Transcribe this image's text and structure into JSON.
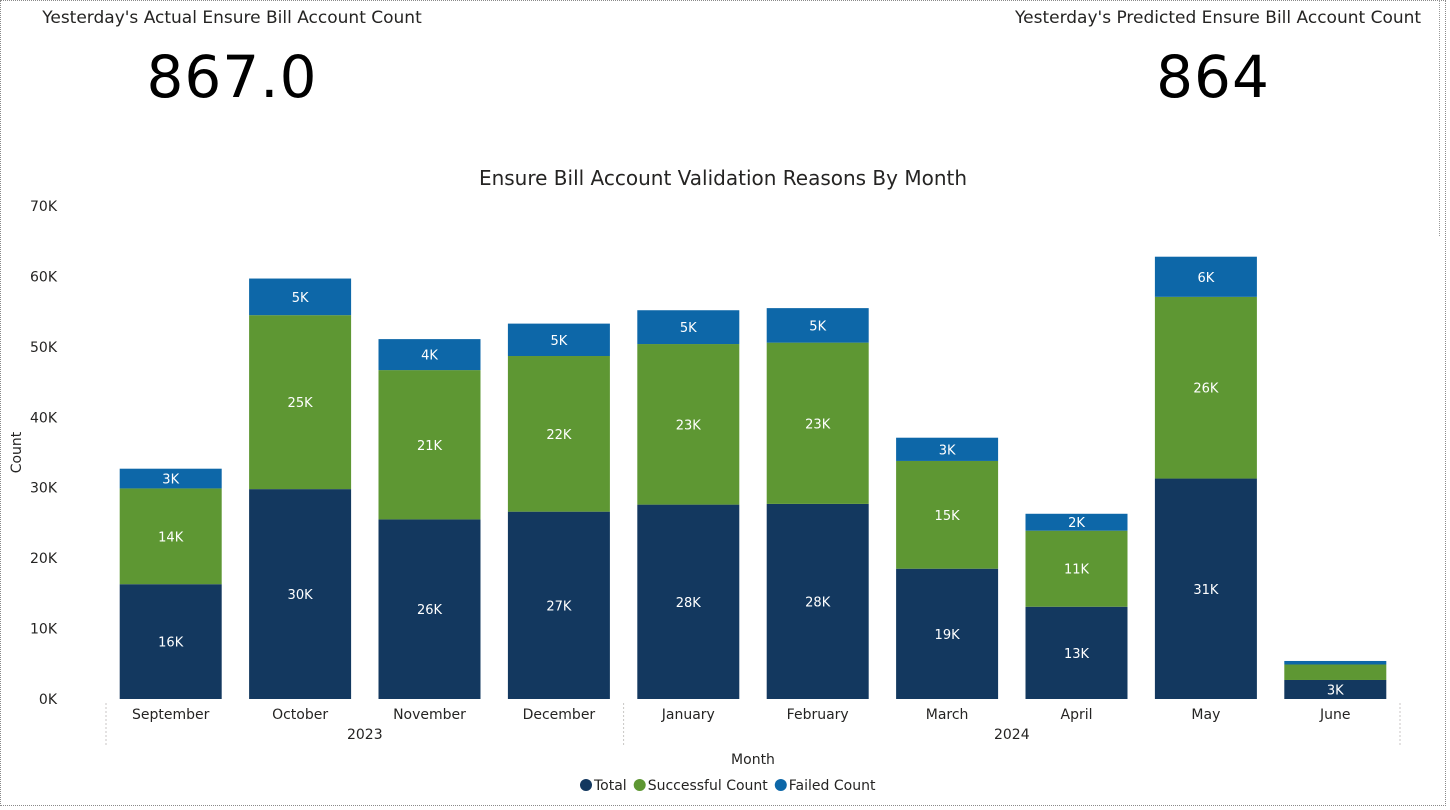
{
  "kpis": {
    "actual": {
      "label": "Yesterday's Actual Ensure Bill Account Count",
      "value": "867.0"
    },
    "predicted": {
      "label": "Yesterday's Predicted Ensure Bill Account Count",
      "value": "864"
    }
  },
  "colors": {
    "total": "#13385f",
    "successful": "#5e9733",
    "failed": "#0d67a8"
  },
  "chart_data": {
    "type": "bar",
    "stacked": true,
    "title": "Ensure Bill Account Validation Reasons By Month",
    "xlabel": "Month",
    "ylabel": "Count",
    "ylim": [
      0,
      70000
    ],
    "yticks": [
      "0K",
      "10K",
      "20K",
      "30K",
      "40K",
      "50K",
      "60K",
      "70K"
    ],
    "categories": [
      "September",
      "October",
      "November",
      "December",
      "January",
      "February",
      "March",
      "April",
      "May",
      "June"
    ],
    "year_groups": [
      {
        "label": "2023",
        "months": 4
      },
      {
        "label": "2024",
        "months": 6
      }
    ],
    "series": [
      {
        "name": "Total",
        "values": [
          16300,
          29800,
          25500,
          26600,
          27600,
          27700,
          18500,
          13100,
          31300,
          2700
        ],
        "labels": [
          "16K",
          "30K",
          "26K",
          "27K",
          "28K",
          "28K",
          "19K",
          "13K",
          "31K",
          "3K"
        ]
      },
      {
        "name": "Successful Count",
        "values": [
          13600,
          24700,
          21200,
          22100,
          22800,
          22900,
          15300,
          10800,
          25800,
          2200
        ],
        "labels": [
          "14K",
          "25K",
          "21K",
          "22K",
          "23K",
          "23K",
          "15K",
          "11K",
          "26K",
          ""
        ]
      },
      {
        "name": "Failed Count",
        "values": [
          2800,
          5200,
          4400,
          4600,
          4800,
          4900,
          3300,
          2400,
          5700,
          500
        ],
        "labels": [
          "3K",
          "5K",
          "4K",
          "5K",
          "5K",
          "5K",
          "3K",
          "2K",
          "6K",
          ""
        ]
      }
    ],
    "legend": {
      "position": "bottom-center"
    },
    "grid": false
  }
}
